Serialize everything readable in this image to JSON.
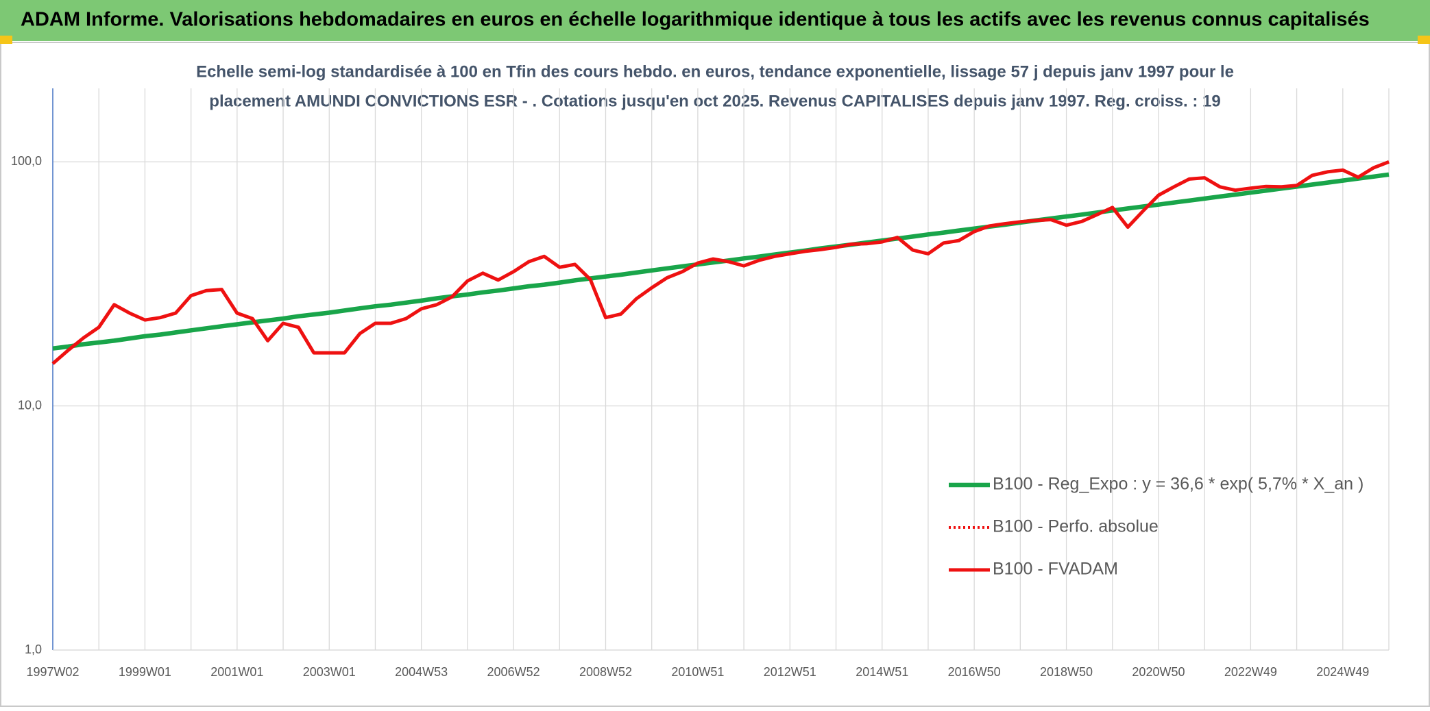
{
  "chart_data": {
    "type": "line",
    "title": "ADAM Informe. Valorisations hebdomadaires en euros en échelle logarithmique identique à tous les actifs avec les revenus connus capitalisés",
    "subtitle": [
      "Echelle semi-log standardisée à 100 en Tfin des cours hebdo. en euros, tendance exponentielle, lissage 57 j depuis janv 1997 pour le",
      "placement AMUNDI CONVICTIONS ESR - . Cotations jusqu'en oct 2025. Revenus CAPITALISES depuis janv 1997. Reg. croiss. : 19"
    ],
    "log_scale": true,
    "grid": true,
    "legend_position": "lower right",
    "ylim": [
      1,
      200
    ],
    "yticks": [
      {
        "value": 1,
        "label": "1,0"
      },
      {
        "value": 10,
        "label": "10,0"
      },
      {
        "value": 100,
        "label": "100,0"
      }
    ],
    "categories": [
      "1997W02",
      null,
      null,
      null,
      null,
      null,
      "1999W01",
      null,
      null,
      null,
      null,
      null,
      "2001W01",
      null,
      null,
      null,
      null,
      null,
      "2003W01",
      null,
      null,
      null,
      null,
      null,
      "2004W53",
      null,
      null,
      null,
      null,
      null,
      "2006W52",
      null,
      null,
      null,
      null,
      null,
      "2008W52",
      null,
      null,
      null,
      null,
      null,
      "2010W51",
      null,
      null,
      null,
      null,
      null,
      "2012W51",
      null,
      null,
      null,
      null,
      null,
      "2014W51",
      null,
      null,
      null,
      null,
      null,
      "2016W50",
      null,
      null,
      null,
      null,
      null,
      "2018W50",
      null,
      null,
      null,
      null,
      null,
      "2020W50",
      null,
      null,
      null,
      null,
      null,
      "2022W49",
      null,
      null,
      null,
      null,
      null,
      "2024W49",
      null,
      null,
      null
    ],
    "series": [
      {
        "name": "B100 - Reg_Expo : y = 36,6 * exp( 5,7% *  X_an )",
        "color": "#19a54a",
        "style": "solid",
        "values": [
          17.2,
          17.5,
          17.9,
          18.2,
          18.5,
          18.9,
          19.3,
          19.6,
          20.0,
          20.4,
          20.8,
          21.2,
          21.6,
          22.0,
          22.4,
          22.8,
          23.3,
          23.7,
          24.1,
          24.6,
          25.1,
          25.6,
          26.0,
          26.5,
          27.0,
          27.6,
          28.1,
          28.6,
          29.2,
          29.7,
          30.3,
          30.9,
          31.4,
          32.0,
          32.7,
          33.3,
          33.9,
          34.5,
          35.2,
          35.9,
          36.6,
          37.3,
          38.0,
          38.7,
          39.4,
          40.2,
          40.9,
          41.7,
          42.5,
          43.3,
          44.2,
          45.0,
          45.8,
          46.7,
          47.6,
          48.5,
          49.4,
          50.4,
          51.3,
          52.3,
          53.3,
          54.3,
          55.3,
          56.4,
          57.5,
          58.6,
          59.7,
          60.8,
          62.0,
          63.2,
          64.4,
          65.6,
          66.8,
          68.1,
          69.4,
          70.7,
          72.1,
          73.4,
          74.8,
          76.2,
          77.7,
          79.2,
          80.7,
          82.2,
          83.8,
          85.4,
          87.0,
          88.7
        ]
      },
      {
        "name": "B100 - Perfo. absolue",
        "color": "#ee1111",
        "style": "dotted",
        "values": [
          14.9,
          16.9,
          19,
          21,
          26,
          24,
          22.5,
          23,
          24,
          28.3,
          29.7,
          30,
          24,
          22.8,
          18.5,
          21.8,
          21,
          16.5,
          16.5,
          16.5,
          19.8,
          21.8,
          21.8,
          22.8,
          25,
          26,
          28,
          32.5,
          35,
          32.8,
          35.5,
          39,
          41,
          37,
          38,
          33,
          23,
          23.8,
          27.5,
          30.5,
          33.5,
          35.5,
          38.5,
          40,
          39,
          37.5,
          39.5,
          41,
          42,
          43,
          43.7,
          44.6,
          46,
          46.2,
          47,
          49,
          43.5,
          42,
          46.5,
          47.6,
          51.8,
          54.6,
          55.8,
          56.8,
          57.5,
          58,
          55,
          57,
          60.8,
          65,
          54,
          63,
          73,
          79,
          85,
          86,
          79,
          76.5,
          78,
          79.3,
          79,
          80,
          88,
          91,
          92.5,
          86.5,
          94.5,
          100
        ]
      },
      {
        "name": "B100 - FVADAM",
        "color": "#ee1111",
        "style": "solid",
        "values": [
          14.9,
          16.9,
          19,
          21,
          26,
          24,
          22.5,
          23,
          24,
          28.3,
          29.7,
          30,
          24,
          22.8,
          18.5,
          21.8,
          21,
          16.5,
          16.5,
          16.5,
          19.8,
          21.8,
          21.8,
          22.8,
          25,
          26,
          28,
          32.5,
          35,
          32.8,
          35.5,
          39,
          41,
          37,
          38,
          33,
          23,
          23.8,
          27.5,
          30.5,
          33.5,
          35.5,
          38.5,
          40,
          39,
          37.5,
          39.5,
          41,
          42,
          43,
          43.7,
          44.6,
          46,
          46.2,
          47,
          49,
          43.5,
          42,
          46.5,
          47.6,
          51.8,
          54.6,
          55.8,
          56.8,
          57.5,
          58,
          55,
          57,
          60.8,
          65,
          54,
          63,
          73,
          79,
          85,
          86,
          79,
          76.5,
          78,
          79.3,
          79,
          80,
          88,
          91,
          92.5,
          86.5,
          94.5,
          100
        ]
      }
    ]
  }
}
